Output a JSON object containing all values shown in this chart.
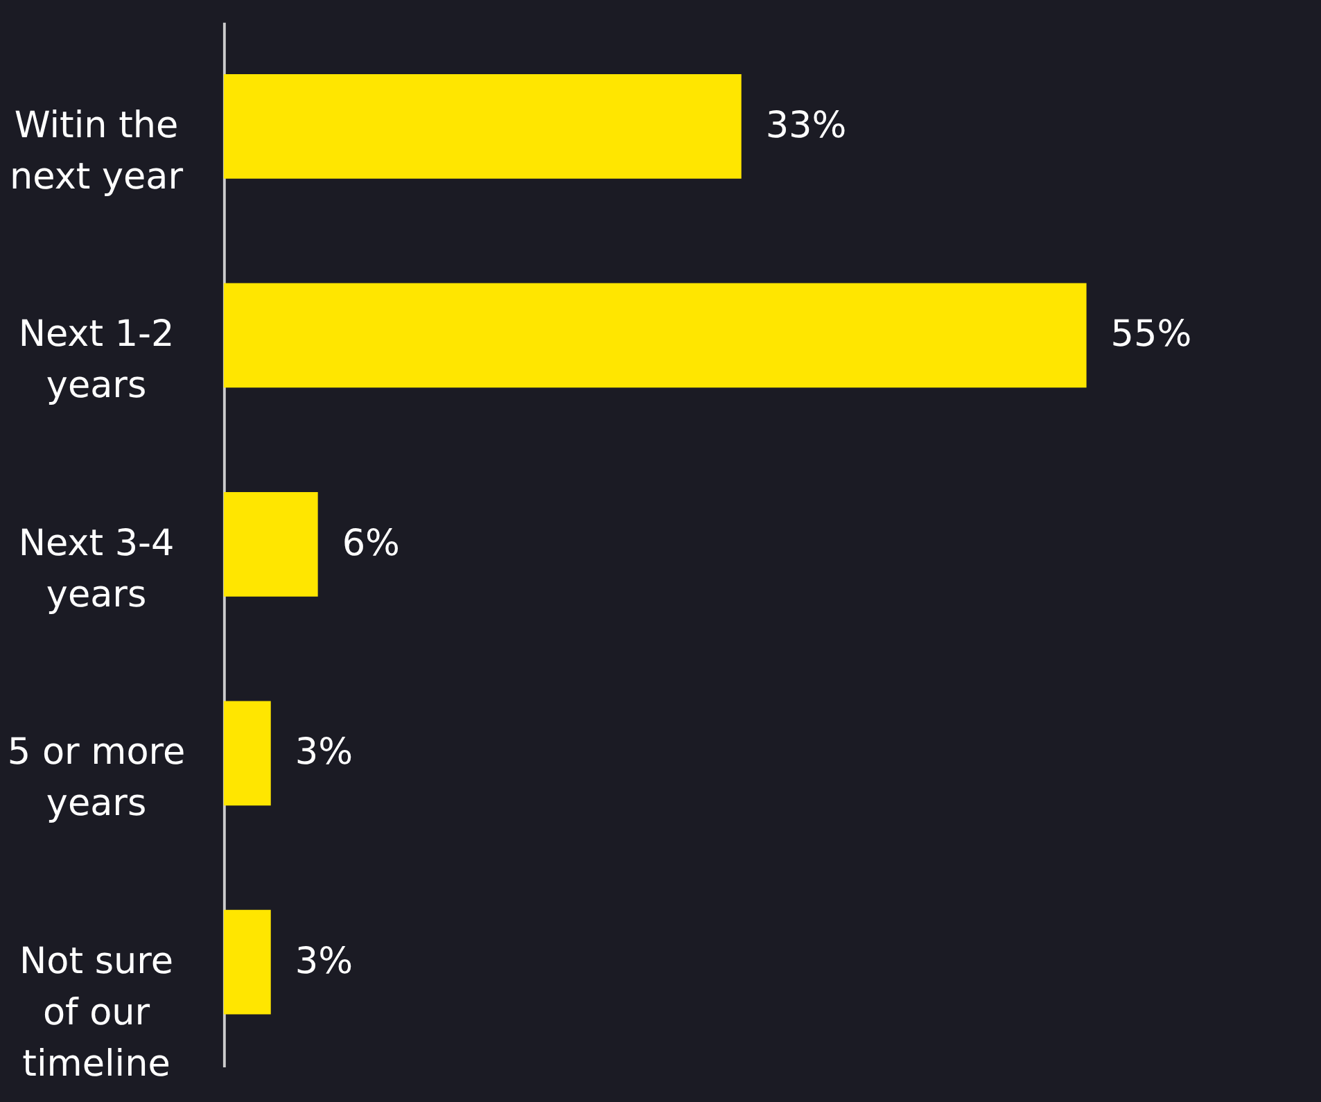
{
  "chart_data": {
    "type": "bar",
    "orientation": "horizontal",
    "categories": [
      "Witin the\nnext year",
      "Next 1-2\nyears",
      "Next 3-4\nyears",
      "5 or more\nyears",
      "Not sure\nof our\ntimeline"
    ],
    "values": [
      33,
      55,
      6,
      3,
      3
    ],
    "value_labels": [
      "33%",
      "55%",
      "6%",
      "3%",
      "3%"
    ],
    "color": "#ffe600",
    "grid": false
  }
}
